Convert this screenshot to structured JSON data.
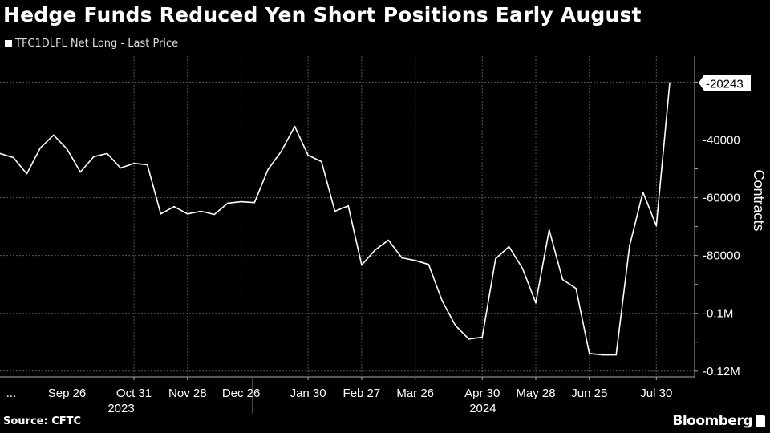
{
  "title": "Hedge Funds Reduced Yen Short Positions Early August",
  "source": "Source: CFTC",
  "brand": "Bloomberg",
  "colors": {
    "background": "#000000",
    "line": "#ffffff",
    "grid": "#555555"
  },
  "chart_data": {
    "type": "line",
    "title": "Hedge Funds Reduced Yen Short Positions Early August",
    "ylabel": "Contracts",
    "ylim": [
      -122000,
      -11000
    ],
    "grid": true,
    "legend_position": "top-left",
    "y_ticks": [
      {
        "value": -40000,
        "label": "-40000"
      },
      {
        "value": -60000,
        "label": "-60000"
      },
      {
        "value": -80000,
        "label": "-80000"
      },
      {
        "value": -100000,
        "label": "-0.1M"
      },
      {
        "value": -120000,
        "label": "-0.12M"
      }
    ],
    "last_value_label": "-20243",
    "x_ticks": [
      {
        "date": "2023-08-22",
        "label": "..."
      },
      {
        "date": "2023-09-26",
        "label": "Sep 26"
      },
      {
        "date": "2023-10-31",
        "label": "Oct 31"
      },
      {
        "date": "2023-11-28",
        "label": "Nov 28"
      },
      {
        "date": "2023-12-26",
        "label": "Dec 26"
      },
      {
        "date": "2024-01-30",
        "label": "Jan 30"
      },
      {
        "date": "2024-02-27",
        "label": "Feb 27"
      },
      {
        "date": "2024-03-26",
        "label": "Mar 26"
      },
      {
        "date": "2024-04-30",
        "label": "Apr 30"
      },
      {
        "date": "2024-05-28",
        "label": "May 28"
      },
      {
        "date": "2024-06-25",
        "label": "Jun 25"
      },
      {
        "date": "2024-07-30",
        "label": "Jul 30"
      }
    ],
    "year_labels": [
      {
        "date": "2023-10-31",
        "label": "2023"
      },
      {
        "date": "2024-05-07",
        "label": "2024"
      }
    ],
    "year_divider": "2024-01-01",
    "series": [
      {
        "name": "TFC1DLFL Net Long - Last Price",
        "x": [
          "2023-08-22",
          "2023-08-29",
          "2023-09-05",
          "2023-09-12",
          "2023-09-19",
          "2023-09-26",
          "2023-10-03",
          "2023-10-10",
          "2023-10-17",
          "2023-10-24",
          "2023-10-31",
          "2023-11-07",
          "2023-11-14",
          "2023-11-21",
          "2023-11-28",
          "2023-12-05",
          "2023-12-12",
          "2023-12-19",
          "2023-12-26",
          "2024-01-02",
          "2024-01-09",
          "2024-01-16",
          "2024-01-23",
          "2024-01-30",
          "2024-02-06",
          "2024-02-13",
          "2024-02-20",
          "2024-02-27",
          "2024-03-05",
          "2024-03-12",
          "2024-03-19",
          "2024-03-26",
          "2024-04-02",
          "2024-04-09",
          "2024-04-16",
          "2024-04-23",
          "2024-04-30",
          "2024-05-07",
          "2024-05-14",
          "2024-05-21",
          "2024-05-28",
          "2024-06-04",
          "2024-06-11",
          "2024-06-18",
          "2024-06-25",
          "2024-07-02",
          "2024-07-09",
          "2024-07-16",
          "2024-07-23",
          "2024-07-30",
          "2024-08-06"
        ],
        "values": [
          -44700,
          -46100,
          -51700,
          -42800,
          -38300,
          -43100,
          -51100,
          -45800,
          -44700,
          -49700,
          -48100,
          -48600,
          -65600,
          -63100,
          -65600,
          -64700,
          -65800,
          -61900,
          -61400,
          -61700,
          -50300,
          -43900,
          -35300,
          -45300,
          -47500,
          -64700,
          -62800,
          -83300,
          -78100,
          -74700,
          -80800,
          -81700,
          -83100,
          -95600,
          -104200,
          -108900,
          -108300,
          -81100,
          -76900,
          -84400,
          -96400,
          -71100,
          -88300,
          -91400,
          -113900,
          -114400,
          -114400,
          -76700,
          -58100,
          -69700,
          -20243
        ]
      }
    ]
  }
}
